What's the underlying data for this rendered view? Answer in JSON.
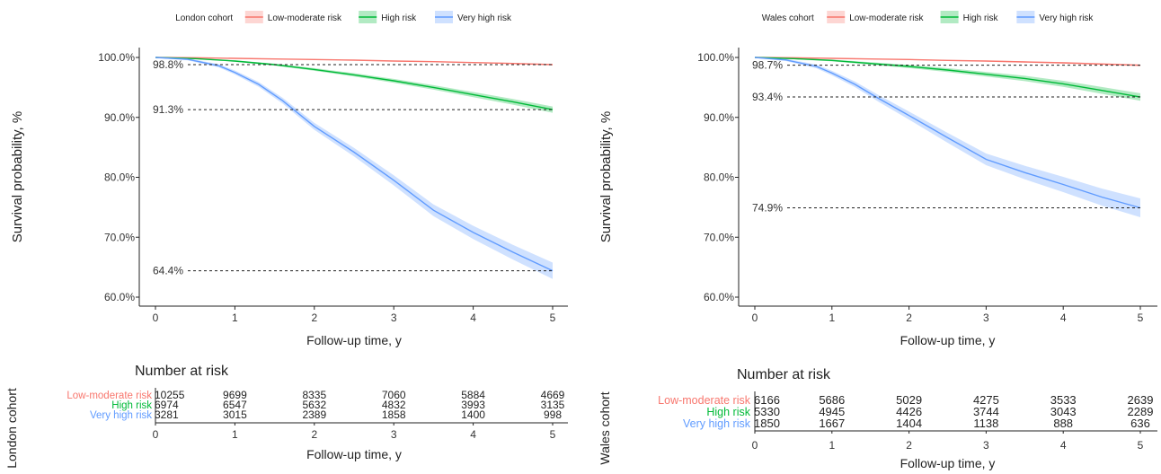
{
  "chart_data": [
    {
      "type": "line",
      "panel": "London",
      "legend": {
        "title": "London cohort",
        "placement": "top",
        "entries": [
          "Low-moderate risk",
          "High risk",
          "Very high risk"
        ]
      },
      "xlabel": "Follow-up time, y",
      "ylabel": "Survival probability, %",
      "x_ticks": [
        "0",
        "1",
        "2",
        "3",
        "4",
        "5"
      ],
      "y_ticks": [
        "60.0%",
        "70.0%",
        "80.0%",
        "90.0%",
        "100.0%"
      ],
      "xlim": [
        0,
        5
      ],
      "ylim": [
        60,
        100
      ],
      "grid": false,
      "series": [
        {
          "name": "Low-moderate risk",
          "color": "#F8766D",
          "x": [
            0,
            0.5,
            1,
            1.5,
            2,
            2.5,
            3,
            3.5,
            4,
            4.5,
            5
          ],
          "values": [
            100,
            99.95,
            99.85,
            99.75,
            99.65,
            99.55,
            99.4,
            99.3,
            99.15,
            99.0,
            98.8
          ],
          "ci_halfwidth": 0.1
        },
        {
          "name": "High risk",
          "color": "#00BA38",
          "x": [
            0,
            0.5,
            1,
            1.5,
            2,
            2.5,
            3,
            3.5,
            4,
            4.5,
            5
          ],
          "values": [
            100,
            99.8,
            99.4,
            98.8,
            98.0,
            97.1,
            96.1,
            95.0,
            93.8,
            92.6,
            91.3
          ],
          "ci_halfwidth": 0.5
        },
        {
          "name": "Very high risk",
          "color": "#619CFF",
          "x": [
            0,
            0.4,
            0.8,
            1,
            1.3,
            1.6,
            2,
            2.5,
            3,
            3.5,
            4,
            4.5,
            5
          ],
          "values": [
            100,
            99.7,
            98.6,
            97.5,
            95.5,
            92.8,
            88.5,
            84.2,
            79.5,
            74.5,
            70.8,
            67.5,
            64.4
          ],
          "ci_halfwidth": 1.3
        }
      ],
      "reference_lines": [
        {
          "value": 98.8,
          "label": "98.8%"
        },
        {
          "value": 91.3,
          "label": "91.3%"
        },
        {
          "value": 64.4,
          "label": "64.4%"
        }
      ],
      "risk_table": {
        "side_title": "London cohort",
        "title": "Number at risk",
        "xlabel": "Follow-up time, y",
        "x_ticks": [
          "0",
          "1",
          "2",
          "3",
          "4",
          "5"
        ],
        "rows": [
          {
            "label": "Low-moderate risk",
            "color": "#F8766D",
            "values": [
              "10255",
              "9699",
              "8335",
              "7060",
              "5884",
              "4669"
            ]
          },
          {
            "label": "High risk",
            "color": "#00BA38",
            "values": [
              "6974",
              "6547",
              "5632",
              "4832",
              "3993",
              "3135"
            ]
          },
          {
            "label": "Very high risk",
            "color": "#619CFF",
            "values": [
              "3281",
              "3015",
              "2389",
              "1858",
              "1400",
              "998"
            ]
          }
        ]
      }
    },
    {
      "type": "line",
      "panel": "Wales",
      "legend": {
        "title": "Wales cohort",
        "placement": "top",
        "entries": [
          "Low-moderate risk",
          "High risk",
          "Very high risk"
        ]
      },
      "xlabel": "Follow-up time, y",
      "ylabel": "Survival probability, %",
      "x_ticks": [
        "0",
        "1",
        "2",
        "3",
        "4",
        "5"
      ],
      "y_ticks": [
        "60.0%",
        "70.0%",
        "80.0%",
        "90.0%",
        "100.0%"
      ],
      "xlim": [
        0,
        5
      ],
      "ylim": [
        60,
        100
      ],
      "grid": false,
      "series": [
        {
          "name": "Low-moderate risk",
          "color": "#F8766D",
          "x": [
            0,
            0.5,
            1,
            1.5,
            2,
            2.5,
            3,
            3.5,
            4,
            4.5,
            5
          ],
          "values": [
            100,
            99.95,
            99.85,
            99.75,
            99.65,
            99.5,
            99.4,
            99.25,
            99.1,
            98.9,
            98.7
          ],
          "ci_halfwidth": 0.15
        },
        {
          "name": "High risk",
          "color": "#00BA38",
          "x": [
            0,
            0.5,
            1,
            1.5,
            2,
            2.5,
            3,
            3.5,
            4,
            4.5,
            5
          ],
          "values": [
            100,
            99.8,
            99.5,
            99.0,
            98.5,
            97.9,
            97.2,
            96.5,
            95.6,
            94.5,
            93.4
          ],
          "ci_halfwidth": 0.6
        },
        {
          "name": "Very high risk",
          "color": "#619CFF",
          "x": [
            0,
            0.4,
            0.8,
            1,
            1.3,
            1.6,
            2,
            2.5,
            3,
            3.5,
            4,
            4.5,
            5
          ],
          "values": [
            100,
            99.6,
            98.5,
            97.4,
            95.5,
            93.2,
            90.3,
            86.6,
            83.0,
            80.8,
            78.8,
            76.7,
            74.9
          ],
          "ci_halfwidth": 1.5
        }
      ],
      "reference_lines": [
        {
          "value": 98.7,
          "label": "98.7%"
        },
        {
          "value": 93.4,
          "label": "93.4%"
        },
        {
          "value": 74.9,
          "label": "74.9%"
        }
      ],
      "risk_table": {
        "side_title": "Wales cohort",
        "title": "Number at risk",
        "xlabel": "Follow-up time, y",
        "x_ticks": [
          "0",
          "1",
          "2",
          "3",
          "4",
          "5"
        ],
        "rows": [
          {
            "label": "Low-moderate risk",
            "color": "#F8766D",
            "values": [
              "6166",
              "5686",
              "5029",
              "4275",
              "3533",
              "2639"
            ]
          },
          {
            "label": "High risk",
            "color": "#00BA38",
            "values": [
              "5330",
              "4945",
              "4426",
              "3744",
              "3043",
              "2289"
            ]
          },
          {
            "label": "Very high risk",
            "color": "#619CFF",
            "values": [
              "1850",
              "1667",
              "1404",
              "1138",
              "888",
              "636"
            ]
          }
        ]
      }
    }
  ]
}
